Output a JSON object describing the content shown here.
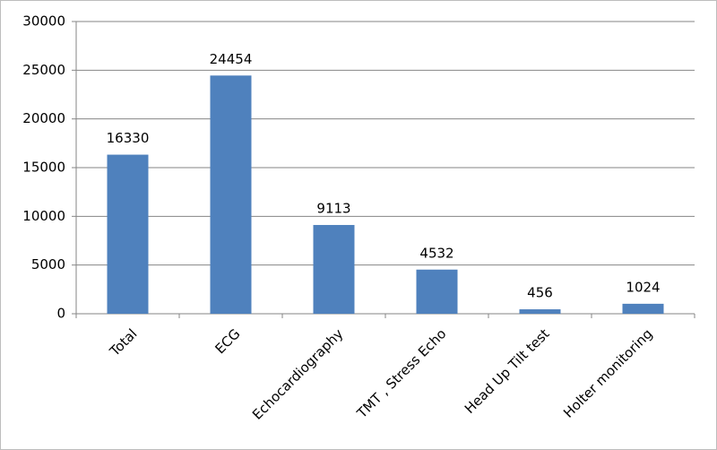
{
  "chart_data": {
    "type": "bar",
    "categories": [
      "Total",
      "ECG",
      "Echocardiography",
      "TMT , Stress Echo",
      "Head Up Tilt test",
      "Holter monitoring"
    ],
    "values": [
      16330,
      24454,
      9113,
      4532,
      456,
      1024
    ],
    "color": "#4f81bd",
    "ylim": [
      0,
      30000
    ],
    "yticks": [
      0,
      5000,
      10000,
      15000,
      20000,
      25000,
      30000
    ],
    "grid": true
  }
}
